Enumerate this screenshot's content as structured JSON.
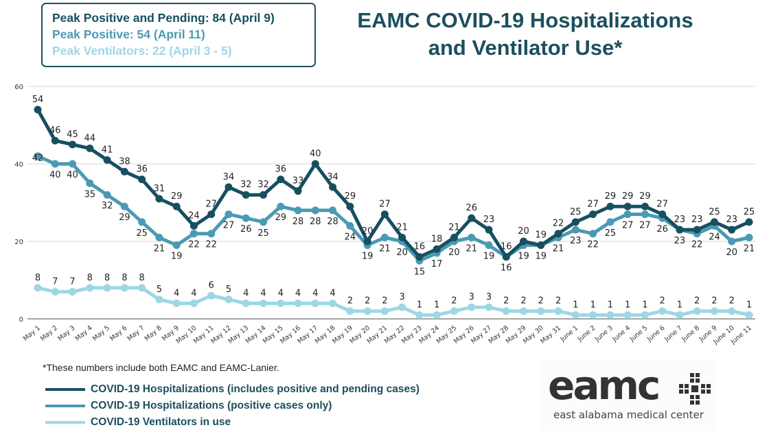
{
  "peaks": {
    "line1": "Peak Positive and Pending: 84 (April 9)",
    "line2": "Peak Positive: 54 (April 11)",
    "line3": "Peak Ventilators: 22 (April 3 - 5)"
  },
  "colors": {
    "dark": "#174f60",
    "mid": "#4a9ab3",
    "light": "#9fd6e6",
    "grid": "#d4d4d4",
    "axis": "#888888",
    "text": "#1b4f5e"
  },
  "footnote": "*These numbers include both EAMC and EAMC-Lanier.",
  "logo": {
    "wordmark": "eamc",
    "subtitle": "east alabama medical center"
  },
  "chart_data": {
    "type": "line",
    "title": "EAMC COVID-19 Hospitalizations and Ventilator Use*",
    "xlabel": "",
    "ylabel": "",
    "ylim": [
      0,
      60
    ],
    "yticks": [
      0,
      20,
      40,
      60
    ],
    "grid": true,
    "legend_position": "bottom-left",
    "categories": [
      "May 1",
      "May 2",
      "May 3",
      "May 4",
      "May 5",
      "May 6",
      "May 7",
      "May 8",
      "May 9",
      "May 10",
      "May 11",
      "May 12",
      "May 13",
      "May 14",
      "May 15",
      "May 16",
      "May 17",
      "May 18",
      "May 19",
      "May 20",
      "May 21",
      "May 22",
      "May 23",
      "May 24",
      "May 25",
      "May 26",
      "May 27",
      "May 28",
      "May 29",
      "May 30",
      "May 31",
      "June 1",
      "June 2",
      "June 3",
      "June 4",
      "June 5",
      "June 6",
      "June 7",
      "June 8",
      "June 9",
      "June 10",
      "June 11"
    ],
    "series": [
      {
        "name": "COVID-19 Hospitalizations (includes positive and pending cases)",
        "color": "#174f60",
        "values": [
          54,
          46,
          45,
          44,
          41,
          38,
          36,
          31,
          29,
          24,
          27,
          34,
          32,
          32,
          36,
          33,
          40,
          34,
          29,
          20,
          27,
          21,
          16,
          18,
          21,
          26,
          23,
          16,
          20,
          19,
          22,
          25,
          27,
          29,
          29,
          29,
          27,
          23,
          23,
          25,
          23,
          25
        ]
      },
      {
        "name": "COVID-19 Hospitalizations (positive cases only)",
        "color": "#4a9ab3",
        "values": [
          42,
          40,
          40,
          35,
          32,
          29,
          25,
          21,
          19,
          22,
          22,
          27,
          26,
          25,
          29,
          28,
          28,
          28,
          24,
          19,
          21,
          20,
          15,
          17,
          20,
          21,
          19,
          16,
          19,
          19,
          21,
          23,
          22,
          25,
          27,
          27,
          26,
          23,
          22,
          24,
          20,
          21
        ]
      },
      {
        "name": "COVID-19 Ventilators in use",
        "color": "#9fd6e6",
        "values": [
          8,
          7,
          7,
          8,
          8,
          8,
          8,
          5,
          4,
          4,
          6,
          5,
          4,
          4,
          4,
          4,
          4,
          4,
          2,
          2,
          2,
          3,
          1,
          1,
          2,
          3,
          3,
          2,
          2,
          2,
          2,
          1,
          1,
          1,
          1,
          1,
          2,
          1,
          2,
          2,
          2,
          1
        ]
      }
    ]
  }
}
